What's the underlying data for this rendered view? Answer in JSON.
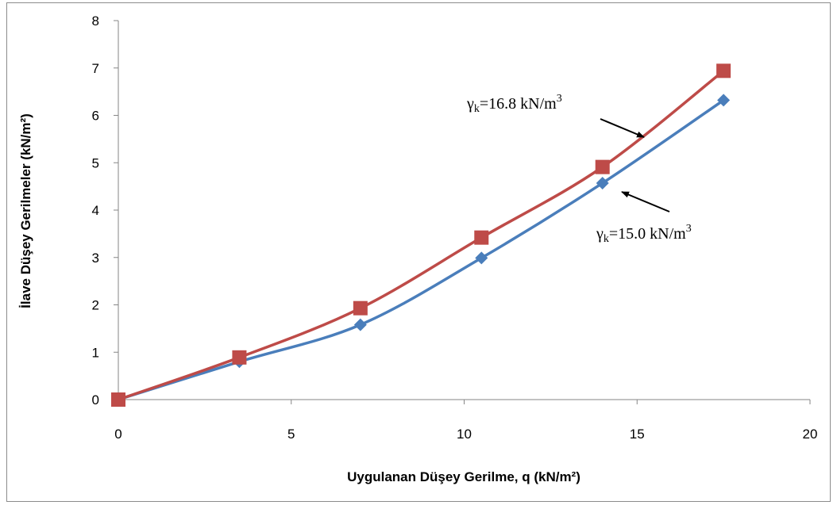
{
  "chart_data": {
    "type": "line",
    "xlabel": "Uygulanan Düşey Gerilme, q (kN/m²)",
    "ylabel": "İlave Düşey Gerilmeler (kN/m²)",
    "xlim": [
      0,
      20
    ],
    "ylim": [
      0,
      8
    ],
    "xticks": [
      0,
      5,
      10,
      15,
      20
    ],
    "yticks": [
      0,
      1,
      2,
      3,
      4,
      5,
      6,
      7,
      8
    ],
    "grid": false,
    "legend": "none",
    "series": [
      {
        "marker": "diamond",
        "color": "#4a7ebb",
        "x": [
          0,
          3.5,
          7,
          10.5,
          14,
          17.5
        ],
        "y": [
          0,
          0.8,
          1.58,
          2.99,
          4.57,
          6.32
        ]
      },
      {
        "marker": "square",
        "color": "#be4b48",
        "x": [
          0,
          3.5,
          7,
          10.5,
          14,
          17.5
        ],
        "y": [
          0,
          0.89,
          1.93,
          3.42,
          4.91,
          6.94
        ]
      }
    ],
    "annotations": [
      {
        "symbol": "γ",
        "subscript": "k",
        "text": "=16.8 kN/m",
        "superscript": "3",
        "points_to_series": 1
      },
      {
        "symbol": "γ",
        "subscript": "k",
        "text": "=15.0 kN/m",
        "superscript": "3",
        "points_to_series": 0
      }
    ]
  }
}
